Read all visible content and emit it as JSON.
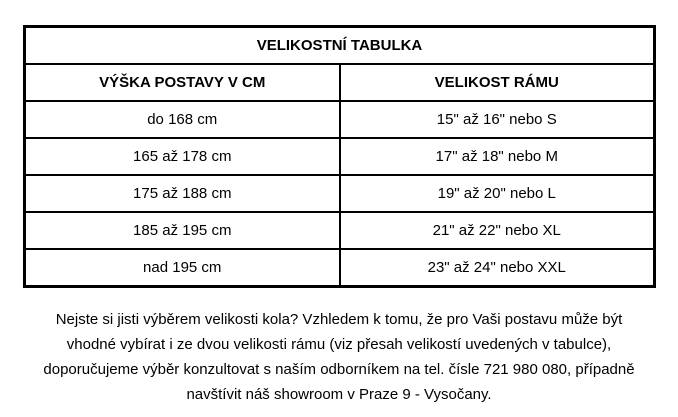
{
  "table": {
    "title": "VELIKOSTNÍ TABULKA",
    "columns": [
      {
        "label": "VÝŠKA POSTAVY V CM"
      },
      {
        "label": "VELIKOST RÁMU"
      }
    ],
    "rows": [
      {
        "height": "do 168 cm",
        "frame": "15\" až 16\" nebo S"
      },
      {
        "height": "165 až 178 cm",
        "frame": "17\" až 18\" nebo M"
      },
      {
        "height": "175 až 188 cm",
        "frame": "19\" až 20\" nebo L"
      },
      {
        "height": "185 až 195 cm",
        "frame": "21\" až 22\" nebo XL"
      },
      {
        "height": "nad 195 cm",
        "frame": "23\" až 24\" nebo XXL"
      }
    ]
  },
  "note": {
    "lines": [
      "Nejste si jisti výběrem velikosti kola? Vzhledem k tomu, že pro Vaši postavu může být",
      "vhodné vybírat i ze dvou velikosti rámu (viz přesah velikostí uvedených v tabulce),",
      "doporučujeme výběr konzultovat s naším odborníkem na tel. čísle 721 980 080, případně",
      "navštívit náš showroom v Praze 9 - Vysočany."
    ]
  },
  "colors": {
    "text": "#000000",
    "border": "#000000",
    "background": "#ffffff"
  }
}
